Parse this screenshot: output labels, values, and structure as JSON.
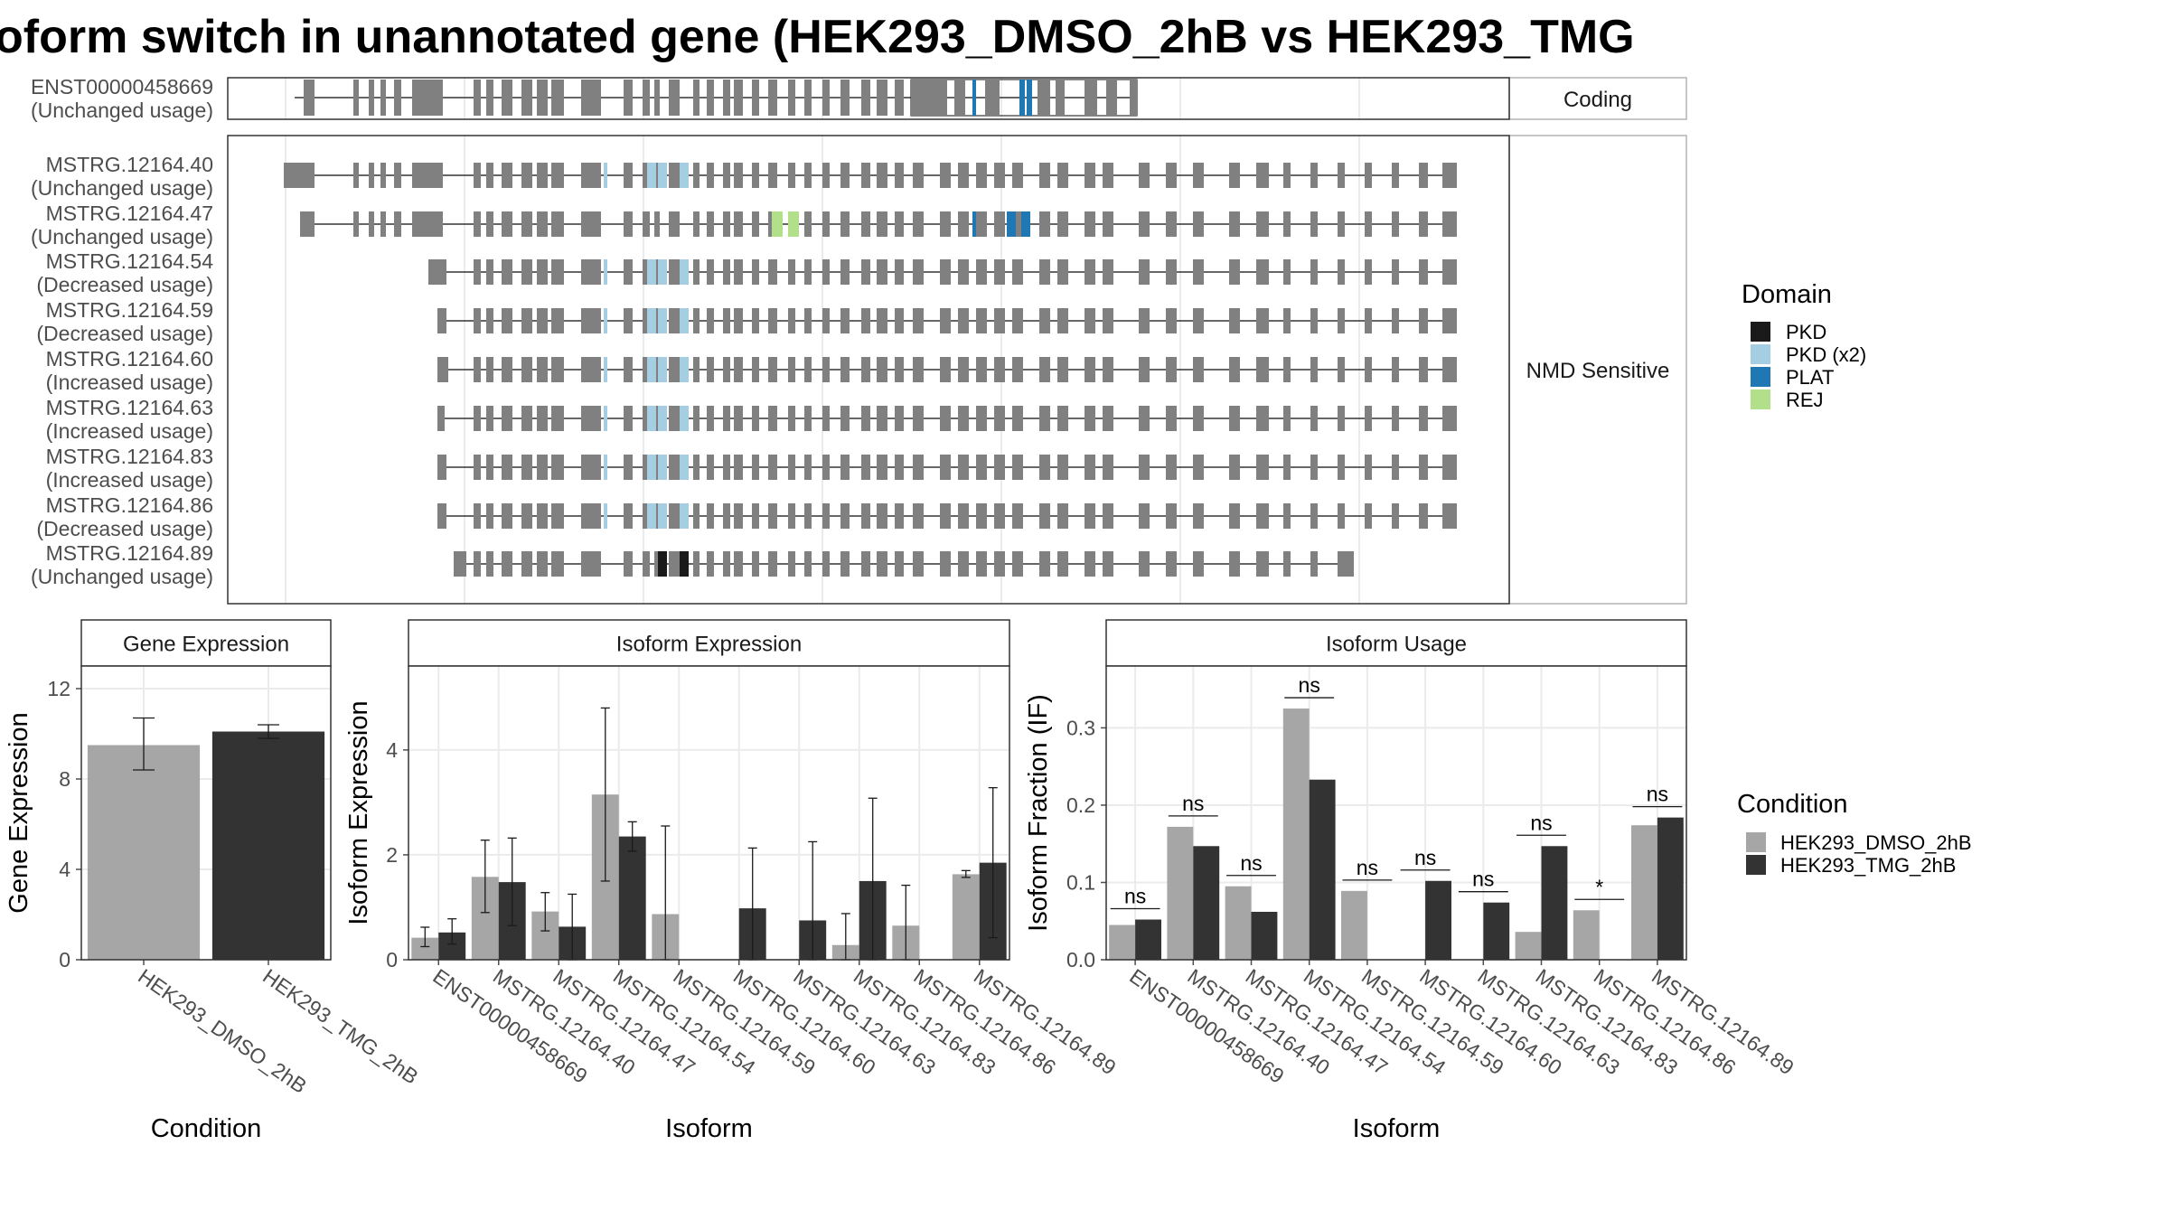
{
  "title": "oform switch in unannotated gene (HEK293_DMSO_2hB vs HEK293_TMG",
  "colors": {
    "dmso": "#A6A6A6",
    "tmg": "#333333",
    "exon": "#808080",
    "PKD": "#1A1A1A",
    "PKD (x2)": "#A6CEE3",
    "PLAT": "#1F78B4",
    "REJ": "#B2DF8A"
  },
  "structure": {
    "coding": {
      "strip": "Coding",
      "isoforms": [
        {
          "name": "ENST00000458669",
          "usage": "(Unchanged usage)"
        }
      ]
    },
    "nmd": {
      "strip": "NMD Sensitive",
      "isoforms": [
        {
          "name": "MSTRG.12164.40",
          "usage": "(Unchanged usage)"
        },
        {
          "name": "MSTRG.12164.47",
          "usage": "(Unchanged usage)"
        },
        {
          "name": "MSTRG.12164.54",
          "usage": "(Decreased usage)"
        },
        {
          "name": "MSTRG.12164.59",
          "usage": "(Decreased usage)"
        },
        {
          "name": "MSTRG.12164.60",
          "usage": "(Increased usage)"
        },
        {
          "name": "MSTRG.12164.63",
          "usage": "(Increased usage)"
        },
        {
          "name": "MSTRG.12164.83",
          "usage": "(Increased usage)"
        },
        {
          "name": "MSTRG.12164.86",
          "usage": "(Decreased usage)"
        },
        {
          "name": "MSTRG.12164.89",
          "usage": "(Unchanged usage)"
        }
      ]
    }
  },
  "legend_domain": {
    "title": "Domain",
    "items": [
      "PKD",
      "PKD (x2)",
      "PLAT",
      "REJ"
    ]
  },
  "legend_condition": {
    "title": "Condition",
    "items": [
      "HEK293_DMSO_2hB",
      "HEK293_TMG_2hB"
    ]
  },
  "chart_data": [
    {
      "type": "bar",
      "title": "Gene Expression",
      "xlabel": "Condition",
      "ylabel": "Gene Expression",
      "ylim": [
        0,
        13
      ],
      "yticks": [
        0,
        4,
        8,
        12
      ],
      "categories": [
        "HEK293_DMSO_2hB",
        "HEK293_TMG_2hB"
      ],
      "values": [
        9.5,
        10.1
      ],
      "error_low": [
        8.4,
        9.8
      ],
      "error_high": [
        10.7,
        10.4
      ]
    },
    {
      "type": "bar",
      "title": "Isoform Expression",
      "xlabel": "Isoform",
      "ylabel": "Isoform Expression",
      "ylim": [
        0,
        5.6
      ],
      "yticks": [
        0,
        2,
        4
      ],
      "categories": [
        "ENST00000458669",
        "MSTRG.12164.40",
        "MSTRG.12164.47",
        "MSTRG.12164.54",
        "MSTRG.12164.59",
        "MSTRG.12164.60",
        "MSTRG.12164.63",
        "MSTRG.12164.83",
        "MSTRG.12164.86",
        "MSTRG.12164.89"
      ],
      "series": [
        {
          "name": "HEK293_DMSO_2hB",
          "values": [
            0.42,
            1.58,
            0.92,
            3.15,
            0.87,
            0.0,
            0.0,
            0.28,
            0.65,
            1.63
          ],
          "error_low": [
            0.25,
            0.9,
            0.55,
            1.5,
            0.0,
            0.0,
            0.0,
            0.0,
            0.0,
            1.57
          ],
          "error_high": [
            0.62,
            2.28,
            1.28,
            4.8,
            2.55,
            0.0,
            0.0,
            0.88,
            1.42,
            1.7
          ]
        },
        {
          "name": "HEK293_TMG_2hB",
          "values": [
            0.52,
            1.48,
            0.63,
            2.35,
            0.0,
            0.98,
            0.75,
            1.5,
            0.0,
            1.85
          ],
          "error_low": [
            0.3,
            0.65,
            0.0,
            2.07,
            0.0,
            0.0,
            0.0,
            0.0,
            0.0,
            0.42
          ],
          "error_high": [
            0.78,
            2.32,
            1.25,
            2.63,
            0.0,
            2.13,
            2.25,
            3.08,
            0.0,
            3.28
          ]
        }
      ]
    },
    {
      "type": "bar",
      "title": "Isoform Usage",
      "xlabel": "Isoform",
      "ylabel": "Isoform Fraction (IF)",
      "ylim": [
        0,
        0.38
      ],
      "yticks": [
        0.0,
        0.1,
        0.2,
        0.3
      ],
      "ytick_labels": [
        "0.0",
        "0.1",
        "0.2",
        "0.3"
      ],
      "categories": [
        "ENST00000458669",
        "MSTRG.12164.40",
        "MSTRG.12164.47",
        "MSTRG.12164.54",
        "MSTRG.12164.59",
        "MSTRG.12164.60",
        "MSTRG.12164.63",
        "MSTRG.12164.83",
        "MSTRG.12164.86",
        "MSTRG.12164.89"
      ],
      "series": [
        {
          "name": "HEK293_DMSO_2hB",
          "values": [
            0.045,
            0.172,
            0.095,
            0.325,
            0.089,
            0.0,
            0.0,
            0.036,
            0.064,
            0.174
          ]
        },
        {
          "name": "HEK293_TMG_2hB",
          "values": [
            0.052,
            0.147,
            0.062,
            0.233,
            0.0,
            0.102,
            0.074,
            0.147,
            0.0,
            0.184
          ]
        }
      ],
      "significance": [
        "ns",
        "ns",
        "ns",
        "ns",
        "ns",
        "ns",
        "ns",
        "ns",
        "*",
        "ns"
      ]
    }
  ]
}
